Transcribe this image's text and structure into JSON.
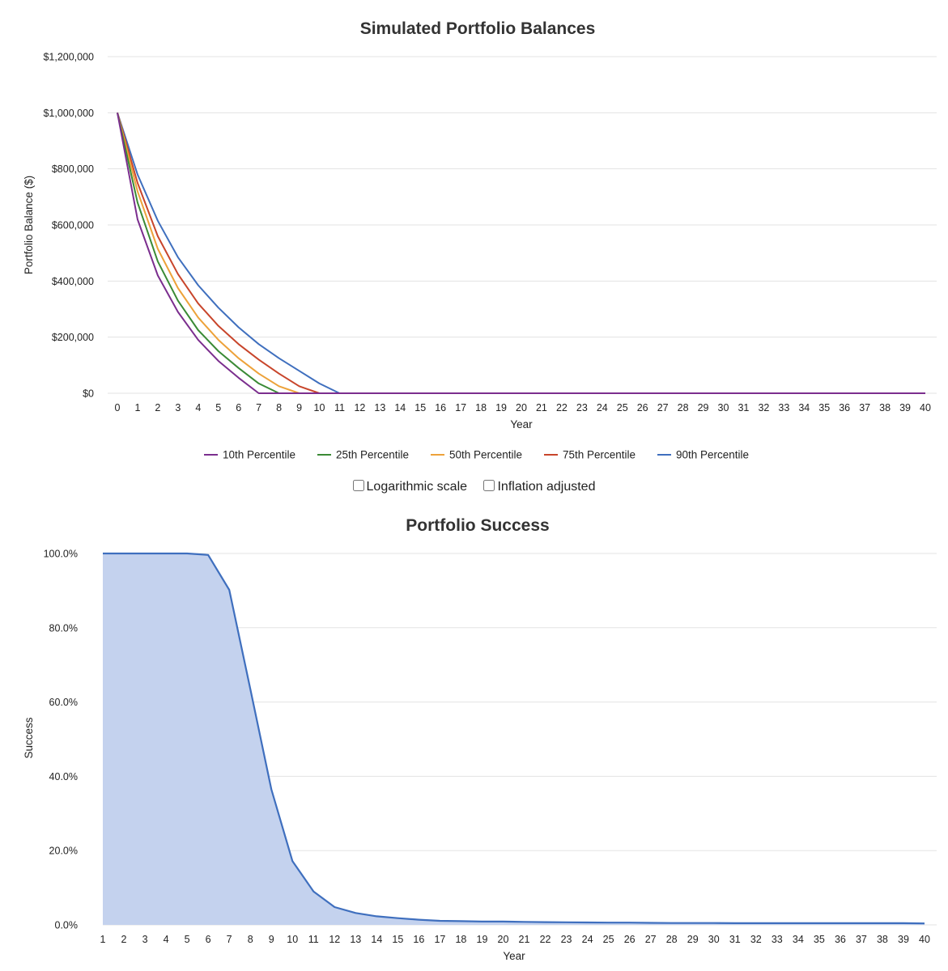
{
  "chart_data": [
    {
      "type": "line",
      "title": "Simulated Portfolio Balances",
      "xlabel": "Year",
      "ylabel": "Portfolio Balance ($)",
      "x": [
        0,
        1,
        2,
        3,
        4,
        5,
        6,
        7,
        8,
        9,
        10,
        11,
        12,
        13,
        14,
        15,
        16,
        17,
        18,
        19,
        20,
        21,
        22,
        23,
        24,
        25,
        26,
        27,
        28,
        29,
        30,
        31,
        32,
        33,
        34,
        35,
        36,
        37,
        38,
        39,
        40
      ],
      "ylim": [
        0,
        1200000
      ],
      "yticks": [
        0,
        200000,
        400000,
        600000,
        800000,
        1000000,
        1200000
      ],
      "ytick_labels": [
        "$0",
        "$200,000",
        "$400,000",
        "$600,000",
        "$800,000",
        "$1,000,000",
        "$1,200,000"
      ],
      "grid": true,
      "legend": "bottom",
      "series": [
        {
          "name": "10th Percentile",
          "color": "#7b2e8e",
          "values": [
            1000000,
            620000,
            420000,
            290000,
            190000,
            115000,
            55000,
            0,
            0,
            0,
            0,
            0,
            0,
            0,
            0,
            0,
            0,
            0,
            0,
            0,
            0,
            0,
            0,
            0,
            0,
            0,
            0,
            0,
            0,
            0,
            0,
            0,
            0,
            0,
            0,
            0,
            0,
            0,
            0,
            0,
            0
          ]
        },
        {
          "name": "25th Percentile",
          "color": "#3a8a35",
          "values": [
            1000000,
            680000,
            470000,
            330000,
            225000,
            150000,
            90000,
            35000,
            0,
            0,
            0,
            0,
            0,
            0,
            0,
            0,
            0,
            0,
            0,
            0,
            0,
            0,
            0,
            0,
            0,
            0,
            0,
            0,
            0,
            0,
            0,
            0,
            0,
            0,
            0,
            0,
            0,
            0,
            0,
            0,
            0
          ]
        },
        {
          "name": "50th Percentile",
          "color": "#eda23a",
          "values": [
            1000000,
            720000,
            515000,
            375000,
            270000,
            190000,
            125000,
            70000,
            25000,
            0,
            0,
            0,
            0,
            0,
            0,
            0,
            0,
            0,
            0,
            0,
            0,
            0,
            0,
            0,
            0,
            0,
            0,
            0,
            0,
            0,
            0,
            0,
            0,
            0,
            0,
            0,
            0,
            0,
            0,
            0,
            0
          ]
        },
        {
          "name": "75th Percentile",
          "color": "#c8452b",
          "values": [
            1000000,
            750000,
            560000,
            425000,
            320000,
            240000,
            175000,
            120000,
            70000,
            25000,
            0,
            0,
            0,
            0,
            0,
            0,
            0,
            0,
            0,
            0,
            0,
            0,
            0,
            0,
            0,
            0,
            0,
            0,
            0,
            0,
            0,
            0,
            0,
            0,
            0,
            0,
            0,
            0,
            0,
            0,
            0
          ]
        },
        {
          "name": "90th Percentile",
          "color": "#3f6fbe",
          "values": [
            1000000,
            780000,
            615000,
            485000,
            385000,
            305000,
            235000,
            175000,
            125000,
            80000,
            35000,
            0,
            0,
            0,
            0,
            0,
            0,
            0,
            0,
            0,
            0,
            0,
            0,
            0,
            0,
            0,
            0,
            0,
            0,
            0,
            0,
            0,
            0,
            0,
            0,
            0,
            0,
            0,
            0,
            0,
            0
          ]
        }
      ]
    },
    {
      "type": "area",
      "title": "Portfolio Success",
      "xlabel": "Year",
      "ylabel": "Success",
      "x": [
        1,
        2,
        3,
        4,
        5,
        6,
        7,
        8,
        9,
        10,
        11,
        12,
        13,
        14,
        15,
        16,
        17,
        18,
        19,
        20,
        21,
        22,
        23,
        24,
        25,
        26,
        27,
        28,
        29,
        30,
        31,
        32,
        33,
        34,
        35,
        36,
        37,
        38,
        39,
        40
      ],
      "ylim": [
        0,
        100
      ],
      "yticks": [
        0,
        20,
        40,
        60,
        80,
        100
      ],
      "ytick_labels": [
        "0.0%",
        "20.0%",
        "40.0%",
        "60.0%",
        "80.0%",
        "100.0%"
      ],
      "grid": true,
      "color": "#3f6fbe",
      "fill_color": "#c4d2ee",
      "values": [
        100,
        100,
        100,
        100,
        100,
        99.6,
        90.2,
        63.5,
        36.5,
        17.2,
        9.0,
        4.8,
        3.2,
        2.3,
        1.8,
        1.4,
        1.1,
        1.0,
        0.9,
        0.9,
        0.8,
        0.75,
        0.7,
        0.65,
        0.6,
        0.6,
        0.55,
        0.5,
        0.5,
        0.5,
        0.45,
        0.45,
        0.45,
        0.45,
        0.45,
        0.45,
        0.45,
        0.45,
        0.45,
        0.4
      ]
    }
  ],
  "controls": {
    "log_scale_label": "Logarithmic scale",
    "inflation_label": "Inflation adjusted",
    "log_scale_checked": false,
    "inflation_checked": false
  }
}
